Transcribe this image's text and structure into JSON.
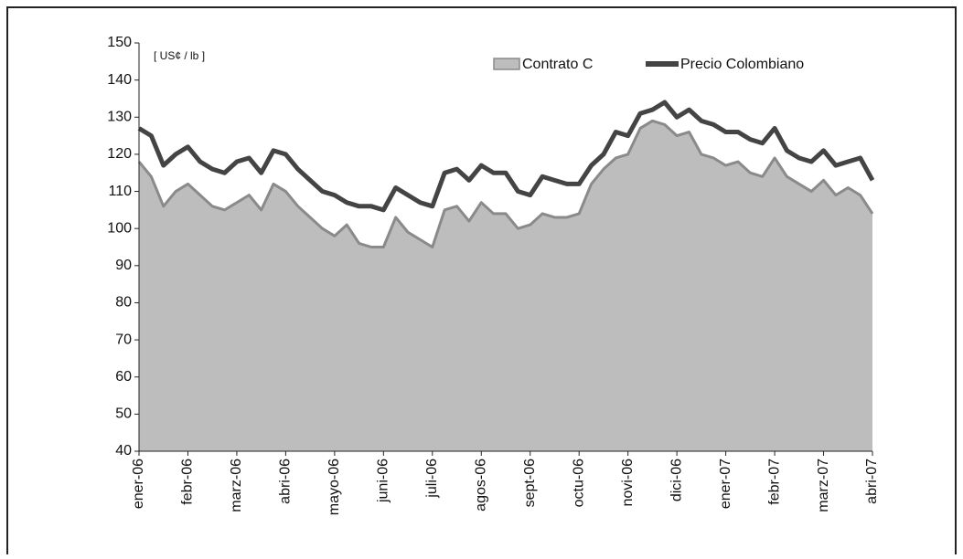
{
  "chart_data": {
    "type": "line",
    "annotation": "[ US¢ / lb ]",
    "categories": [
      "ener-06",
      null,
      null,
      null,
      "febr-06",
      null,
      null,
      null,
      "marz-06",
      null,
      null,
      null,
      "abri-06",
      null,
      null,
      null,
      "mayo-06",
      null,
      null,
      null,
      "juni-06",
      null,
      null,
      null,
      "juli-06",
      null,
      null,
      null,
      "agos-06",
      null,
      null,
      null,
      "sept-06",
      null,
      null,
      null,
      "octu-06",
      null,
      null,
      null,
      "novi-06",
      null,
      null,
      null,
      "dici-06",
      null,
      null,
      null,
      "ener-07",
      null,
      null,
      null,
      "febr-07",
      null,
      null,
      null,
      "marz-07",
      null,
      null,
      null,
      "abri-07"
    ],
    "series": [
      {
        "name": "Contrato C",
        "color": "#8a8a8a",
        "fill": "#bdbdbd",
        "area": true,
        "values": [
          118,
          114,
          106,
          110,
          112,
          109,
          106,
          105,
          107,
          109,
          105,
          112,
          110,
          106,
          103,
          100,
          98,
          101,
          96,
          95,
          95,
          103,
          99,
          97,
          95,
          105,
          106,
          102,
          107,
          104,
          104,
          100,
          101,
          104,
          103,
          103,
          104,
          112,
          116,
          119,
          120,
          127,
          129,
          128,
          125,
          126,
          120,
          119,
          117,
          118,
          115,
          114,
          119,
          114,
          112,
          110,
          113,
          109,
          111,
          109,
          104
        ]
      },
      {
        "name": "Precio Colombiano",
        "color": "#444444",
        "values": [
          127,
          125,
          117,
          120,
          122,
          118,
          116,
          115,
          118,
          119,
          115,
          121,
          120,
          116,
          113,
          110,
          109,
          107,
          106,
          106,
          105,
          111,
          109,
          107,
          106,
          115,
          116,
          113,
          117,
          115,
          115,
          110,
          109,
          114,
          113,
          112,
          112,
          117,
          120,
          126,
          125,
          131,
          132,
          134,
          130,
          132,
          129,
          128,
          126,
          126,
          124,
          123,
          127,
          121,
          119,
          118,
          121,
          117,
          118,
          119,
          113
        ]
      }
    ],
    "ylim": [
      40,
      150
    ],
    "yticks": [
      40,
      50,
      60,
      70,
      80,
      90,
      100,
      110,
      120,
      130,
      140,
      150
    ]
  }
}
